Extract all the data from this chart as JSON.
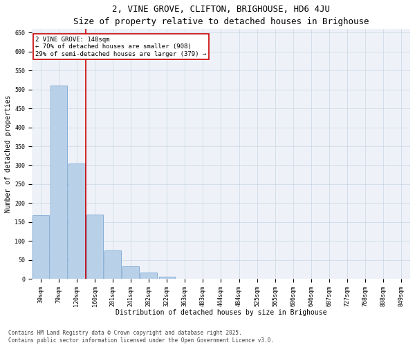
{
  "title": "2, VINE GROVE, CLIFTON, BRIGHOUSE, HD6 4JU",
  "subtitle": "Size of property relative to detached houses in Brighouse",
  "xlabel": "Distribution of detached houses by size in Brighouse",
  "ylabel": "Number of detached properties",
  "categories": [
    "39sqm",
    "79sqm",
    "120sqm",
    "160sqm",
    "201sqm",
    "241sqm",
    "282sqm",
    "322sqm",
    "363sqm",
    "403sqm",
    "444sqm",
    "484sqm",
    "525sqm",
    "565sqm",
    "606sqm",
    "646sqm",
    "687sqm",
    "727sqm",
    "768sqm",
    "808sqm",
    "849sqm"
  ],
  "values": [
    168,
    510,
    305,
    170,
    75,
    33,
    17,
    5,
    1,
    0,
    0,
    0,
    0,
    0,
    0,
    0,
    0,
    0,
    0,
    0,
    0
  ],
  "bar_color": "#b8d0e8",
  "bar_edge_color": "#6699cc",
  "vline_color": "#cc0000",
  "vline_x_idx": 2.5,
  "annotation_box_text": "2 VINE GROVE: 148sqm\n← 70% of detached houses are smaller (908)\n29% of semi-detached houses are larger (379) →",
  "annotation_box_color": "#cc0000",
  "annotation_box_bg": "#ffffff",
  "ylim": [
    0,
    660
  ],
  "yticks": [
    0,
    50,
    100,
    150,
    200,
    250,
    300,
    350,
    400,
    450,
    500,
    550,
    600,
    650
  ],
  "footnote": "Contains HM Land Registry data © Crown copyright and database right 2025.\nContains public sector information licensed under the Open Government Licence v3.0.",
  "bg_color": "#eef2f8",
  "title_fontsize": 9,
  "subtitle_fontsize": 8,
  "axis_label_fontsize": 7,
  "tick_fontsize": 6,
  "annotation_fontsize": 6.5,
  "footnote_fontsize": 5.5
}
